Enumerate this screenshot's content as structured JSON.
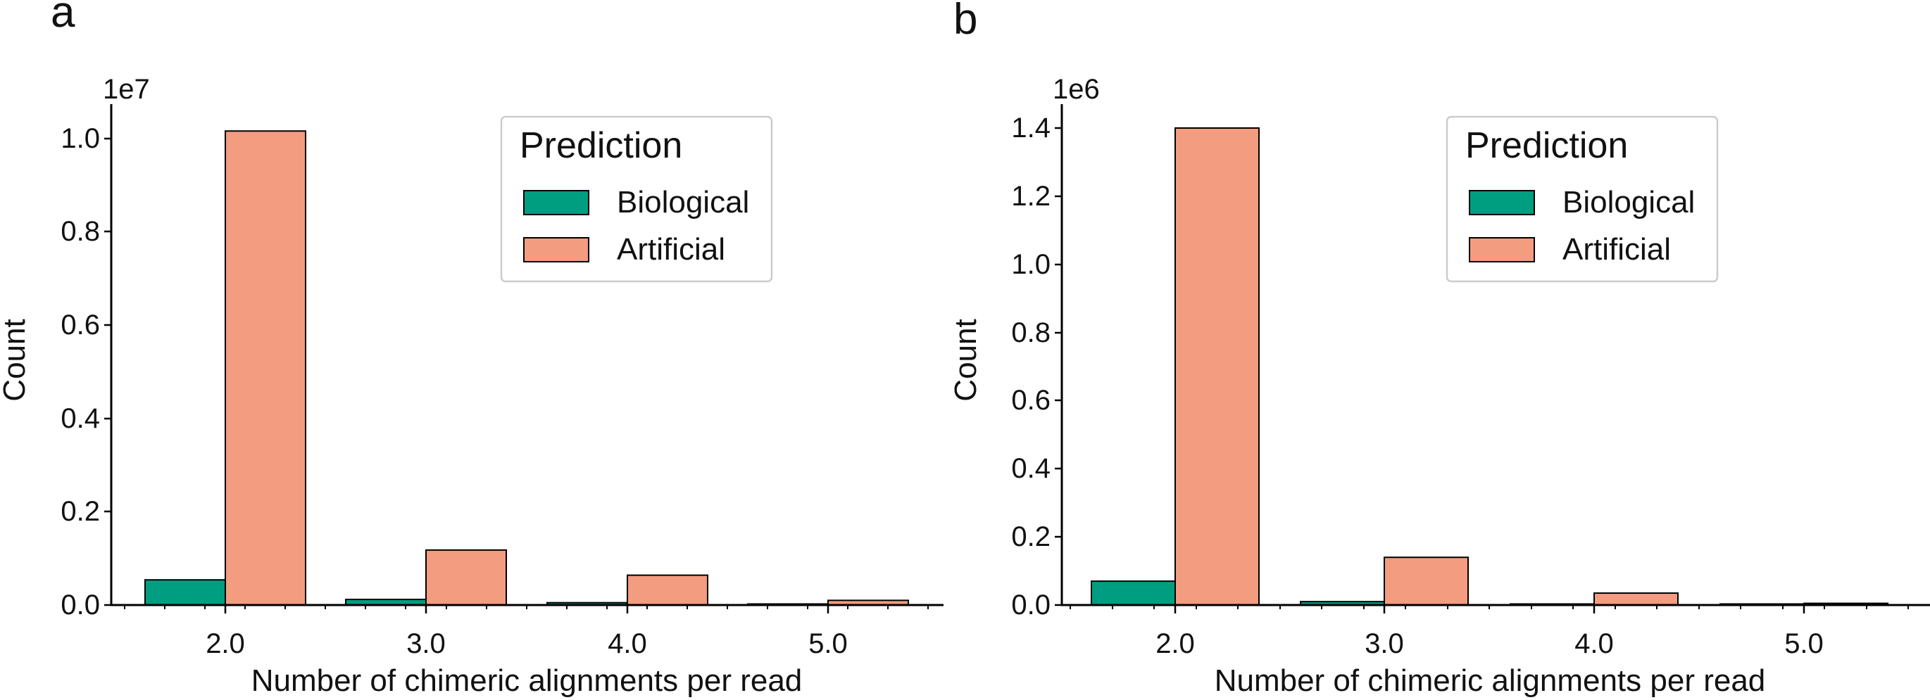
{
  "figure": {
    "panels": [
      {
        "label": "a",
        "offset_label": "1e7",
        "yticks": [
          "0.0",
          "0.2",
          "0.4",
          "0.6",
          "0.8",
          "1.0"
        ],
        "xticks": [
          "2.0",
          "3.0",
          "4.0",
          "5.0"
        ],
        "legend_title": "Prediction",
        "legend_items": [
          "Biological",
          "Artificial"
        ]
      },
      {
        "label": "b",
        "offset_label": "1e6",
        "yticks": [
          "0.0",
          "0.2",
          "0.4",
          "0.6",
          "0.8",
          "1.0",
          "1.2",
          "1.4"
        ],
        "xticks": [
          "2.0",
          "3.0",
          "4.0",
          "5.0"
        ],
        "legend_title": "Prediction",
        "legend_items": [
          "Biological",
          "Artificial"
        ]
      }
    ]
  },
  "colors": {
    "biological": "#009E80",
    "artificial": "#F39C80",
    "edge": "#000000"
  },
  "chart_data": [
    {
      "type": "bar",
      "panel": "a",
      "categories": [
        "2.0",
        "3.0",
        "4.0",
        "5.0"
      ],
      "x": [
        2,
        3,
        4,
        5
      ],
      "series": [
        {
          "name": "Biological",
          "values": [
            540000,
            120000,
            50000,
            10000
          ]
        },
        {
          "name": "Artificial",
          "values": [
            10170000,
            1180000,
            640000,
            100000
          ]
        }
      ],
      "xlabel": "Number of chimeric alignments per read",
      "ylabel": "Count",
      "ylim": [
        0,
        10700000
      ],
      "y_scale_label": "1e7",
      "legend": {
        "title": "Prediction",
        "placement": "top-right"
      },
      "grid": false
    },
    {
      "type": "bar",
      "panel": "b",
      "categories": [
        "2.0",
        "3.0",
        "4.0",
        "5.0"
      ],
      "x": [
        2,
        3,
        4,
        5
      ],
      "series": [
        {
          "name": "Biological",
          "values": [
            70000,
            10000,
            2000,
            1000
          ]
        },
        {
          "name": "Artificial",
          "values": [
            1400000,
            140000,
            35000,
            5000
          ]
        }
      ],
      "xlabel": "Number of chimeric alignments per read",
      "ylabel": "Count",
      "ylim": [
        0,
        1470000
      ],
      "y_scale_label": "1e6",
      "legend": {
        "title": "Prediction",
        "placement": "top-right"
      },
      "grid": false
    }
  ]
}
